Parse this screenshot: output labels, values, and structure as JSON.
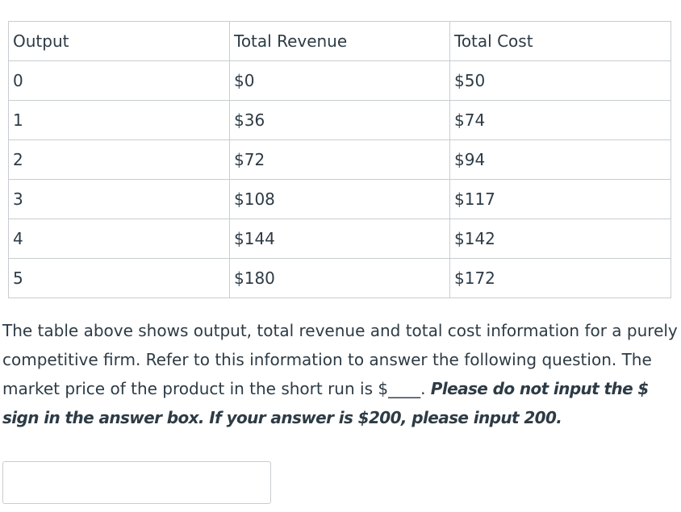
{
  "table": {
    "headers": [
      "Output",
      "Total Revenue",
      "Total Cost"
    ],
    "rows": [
      [
        "0",
        "$0",
        "$50"
      ],
      [
        "1",
        "$36",
        "$74"
      ],
      [
        "2",
        "$72",
        "$94"
      ],
      [
        "3",
        "$108",
        "$117"
      ],
      [
        "4",
        "$144",
        "$142"
      ],
      [
        "5",
        "$180",
        "$172"
      ]
    ]
  },
  "question": {
    "text": "The table above shows output, total revenue and total cost information for a purely competitive firm.  Refer to this information to answer the following question. The market price of the product in the short run is $____. ",
    "instruction": "Please do not input the $ sign in the answer box. If your answer is $200, please input 200."
  },
  "answer": {
    "value": "",
    "placeholder": ""
  }
}
